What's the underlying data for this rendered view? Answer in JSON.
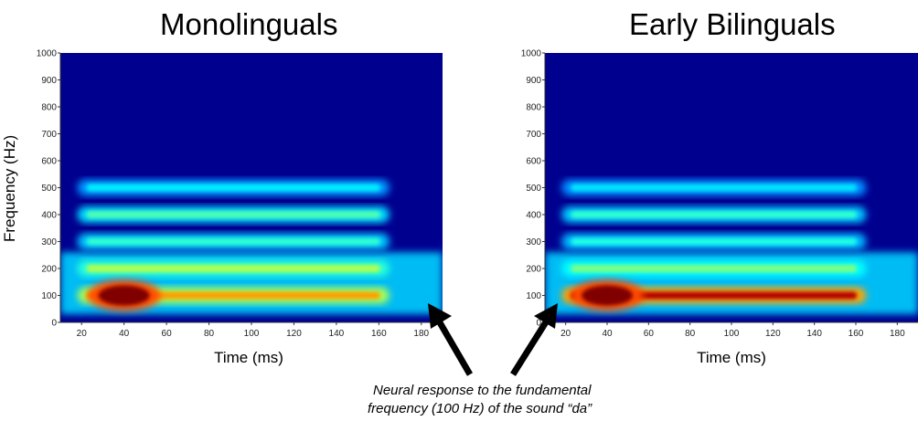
{
  "titles": {
    "left": "Monolinguals",
    "right": "Early Bilinguals"
  },
  "ylabel": "Frequency (Hz)",
  "annotation": {
    "line1": "Neural response to the fundamental",
    "line2": "frequency (100 Hz) of the sound “da”"
  },
  "chart_data": [
    {
      "type": "heatmap",
      "title": "Monolinguals",
      "xlabel": "Time (ms)",
      "ylabel": "Frequency (Hz)",
      "xlim": [
        10,
        190
      ],
      "ylim": [
        0,
        1000
      ],
      "xticks": [
        20,
        40,
        60,
        80,
        100,
        120,
        140,
        160,
        180
      ],
      "yticks": [
        0,
        100,
        200,
        300,
        400,
        500,
        600,
        700,
        800,
        900,
        1000
      ],
      "colormap": "jet",
      "bands": [
        {
          "freq": 100,
          "intensity": 0.72
        },
        {
          "freq": 200,
          "intensity": 0.55
        },
        {
          "freq": 300,
          "intensity": 0.42
        },
        {
          "freq": 400,
          "intensity": 0.45
        },
        {
          "freq": 500,
          "intensity": 0.36
        }
      ],
      "peak": {
        "time": 40,
        "freq": 100,
        "intensity": 1.0
      }
    },
    {
      "type": "heatmap",
      "title": "Early Bilinguals",
      "xlabel": "Time (ms)",
      "ylabel": "Frequency (Hz)",
      "xlim": [
        10,
        190
      ],
      "ylim": [
        0,
        1000
      ],
      "xticks": [
        20,
        40,
        60,
        80,
        100,
        120,
        140,
        160,
        180
      ],
      "yticks": [
        0,
        100,
        200,
        300,
        400,
        500,
        600,
        700,
        800,
        900,
        1000
      ],
      "colormap": "jet",
      "bands": [
        {
          "freq": 100,
          "intensity": 0.95
        },
        {
          "freq": 200,
          "intensity": 0.5
        },
        {
          "freq": 300,
          "intensity": 0.4
        },
        {
          "freq": 400,
          "intensity": 0.42
        },
        {
          "freq": 500,
          "intensity": 0.35
        }
      ],
      "peak": {
        "time": 40,
        "freq": 100,
        "intensity": 1.0
      }
    }
  ],
  "colors": {
    "background": "#00008f",
    "arrow": "#000000"
  }
}
